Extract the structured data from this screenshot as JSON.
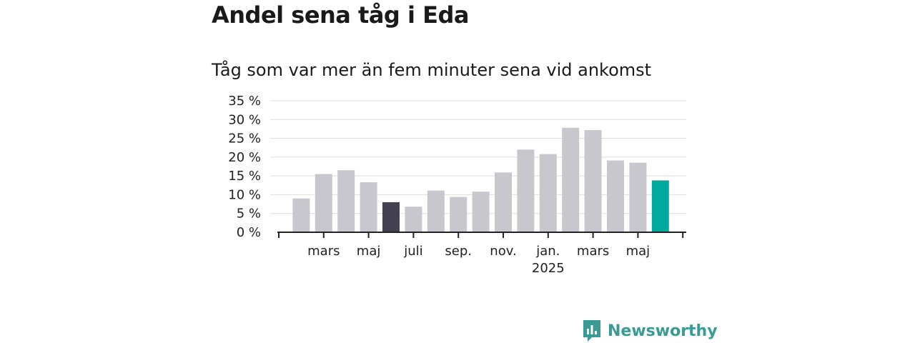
{
  "title": "Andel sena tåg i Eda",
  "subtitle": "Tåg som var mer än fem minuter sena vid ankomst",
  "brand": {
    "name": "Newsworthy",
    "logo_icon": "newsworthy-logo-icon"
  },
  "colors": {
    "bar": "#c8c7ce",
    "highlight_dark": "#43414f",
    "highlight_teal": "#00a99d",
    "grid": "#dddddd",
    "axis": "#222222",
    "brand": "#3a9b94"
  },
  "chart_data": {
    "type": "bar",
    "title": "Andel sena tåg i Eda",
    "subtitle": "Tåg som var mer än fem minuter sena vid ankomst",
    "x": [
      "2024-02",
      "2024-03",
      "2024-04",
      "2024-05",
      "2024-06",
      "2024-07",
      "2024-08",
      "2024-09",
      "2024-10",
      "2024-11",
      "2024-12",
      "2025-01",
      "2025-02",
      "2025-03",
      "2025-04",
      "2025-05",
      "2025-06"
    ],
    "values": [
      9,
      15.5,
      16.5,
      13.3,
      8,
      6.8,
      11.1,
      9.4,
      10.8,
      15.9,
      22,
      20.8,
      27.8,
      27.2,
      19.1,
      18.5,
      13.8
    ],
    "highlight": {
      "2024-06": "dark",
      "2025-06": "teal"
    },
    "ylim": [
      0,
      35
    ],
    "yticks": [
      "0 %",
      "5 %",
      "10 %",
      "15 %",
      "20 %",
      "25 %",
      "30 %",
      "35 %"
    ],
    "xtick_labels": [
      {
        "at": "2024-03",
        "label": "mars"
      },
      {
        "at": "2024-05",
        "label": "maj"
      },
      {
        "at": "2024-07",
        "label": "juli"
      },
      {
        "at": "2024-09",
        "label": "sep."
      },
      {
        "at": "2024-11",
        "label": "nov."
      },
      {
        "at": "2025-01",
        "label": "jan.",
        "sublabel": "2025"
      },
      {
        "at": "2025-03",
        "label": "mars"
      },
      {
        "at": "2025-05",
        "label": "maj"
      }
    ],
    "xlabel": "",
    "ylabel": "",
    "grid": true,
    "legend": "none"
  }
}
